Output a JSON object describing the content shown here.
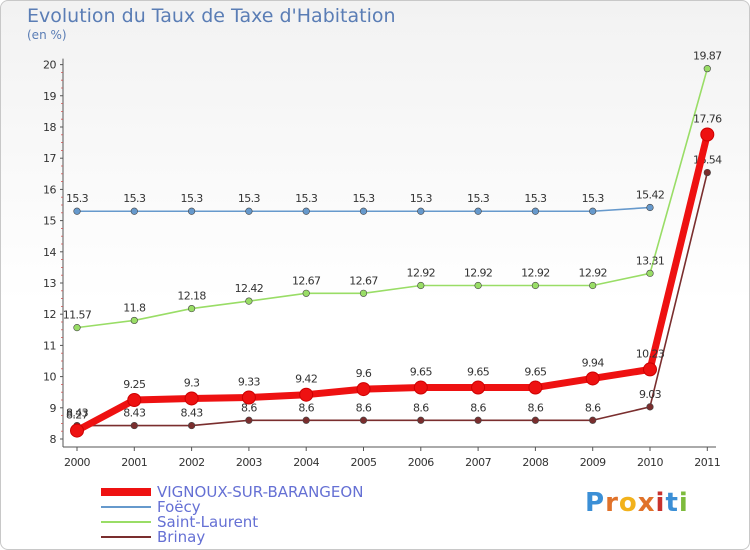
{
  "page": {
    "logo": {
      "text": "Proxiti",
      "colors": [
        "#3b8fd6",
        "#e0722a",
        "#f2b21c",
        "#e0722a",
        "#c8322d",
        "#3b8fd6",
        "#7dbb3c"
      ]
    }
  },
  "chart_data": {
    "type": "line",
    "title": "Evolution du Taux de Taxe d'Habitation",
    "subtitle": "(en %)",
    "xlabel": "",
    "ylabel": "",
    "ylim": [
      8,
      20
    ],
    "yticks": [
      8,
      9,
      10,
      11,
      12,
      13,
      14,
      15,
      16,
      17,
      18,
      19,
      20
    ],
    "categories": [
      "2000",
      "2001",
      "2002",
      "2003",
      "2004",
      "2005",
      "2006",
      "2007",
      "2008",
      "2009",
      "2010",
      "2011"
    ],
    "grid": false,
    "legend_position": "bottom-left",
    "series": [
      {
        "name": "Brinay",
        "color": "#7a2e2e",
        "values": [
          8.43,
          8.43,
          8.43,
          8.6,
          8.6,
          8.6,
          8.6,
          8.6,
          8.6,
          8.6,
          9.03,
          16.54
        ],
        "labels": [
          "8.43",
          "8.43",
          "8.43",
          "8.6",
          "8.6",
          "8.6",
          "8.6",
          "8.6",
          "8.6",
          "8.6",
          "9.03",
          "16.54"
        ]
      },
      {
        "name": "Saint-Laurent",
        "color": "#99dd66",
        "values": [
          11.57,
          11.8,
          12.18,
          12.42,
          12.67,
          12.67,
          12.92,
          12.92,
          12.92,
          12.92,
          13.31,
          19.87
        ],
        "labels": [
          "11.57",
          "11.8",
          "12.18",
          "12.42",
          "12.67",
          "12.67",
          "12.92",
          "12.92",
          "12.92",
          "12.92",
          "13.31",
          "19.87"
        ]
      },
      {
        "name": "Foëcy",
        "color": "#6699cc",
        "values": [
          15.3,
          15.3,
          15.3,
          15.3,
          15.3,
          15.3,
          15.3,
          15.3,
          15.3,
          15.3,
          15.42,
          null
        ],
        "labels": [
          "15.3",
          "15.3",
          "15.3",
          "15.3",
          "15.3",
          "15.3",
          "15.3",
          "15.3",
          "15.3",
          "15.3",
          "15.42",
          null
        ]
      },
      {
        "name": "VIGNOUX-SUR-BARANGEON",
        "color": "#ee1111",
        "values": [
          8.27,
          9.25,
          9.3,
          9.33,
          9.42,
          9.6,
          9.65,
          9.65,
          9.65,
          9.94,
          10.23,
          17.76
        ],
        "labels": [
          "8.27",
          "9.25",
          "9.3",
          "9.33",
          "9.42",
          "9.6",
          "9.65",
          "9.65",
          "9.65",
          "9.94",
          "10.23",
          "17.76"
        ]
      }
    ],
    "legend_order": [
      "VIGNOUX-SUR-BARANGEON",
      "Foëcy",
      "Saint-Laurent",
      "Brinay"
    ]
  }
}
